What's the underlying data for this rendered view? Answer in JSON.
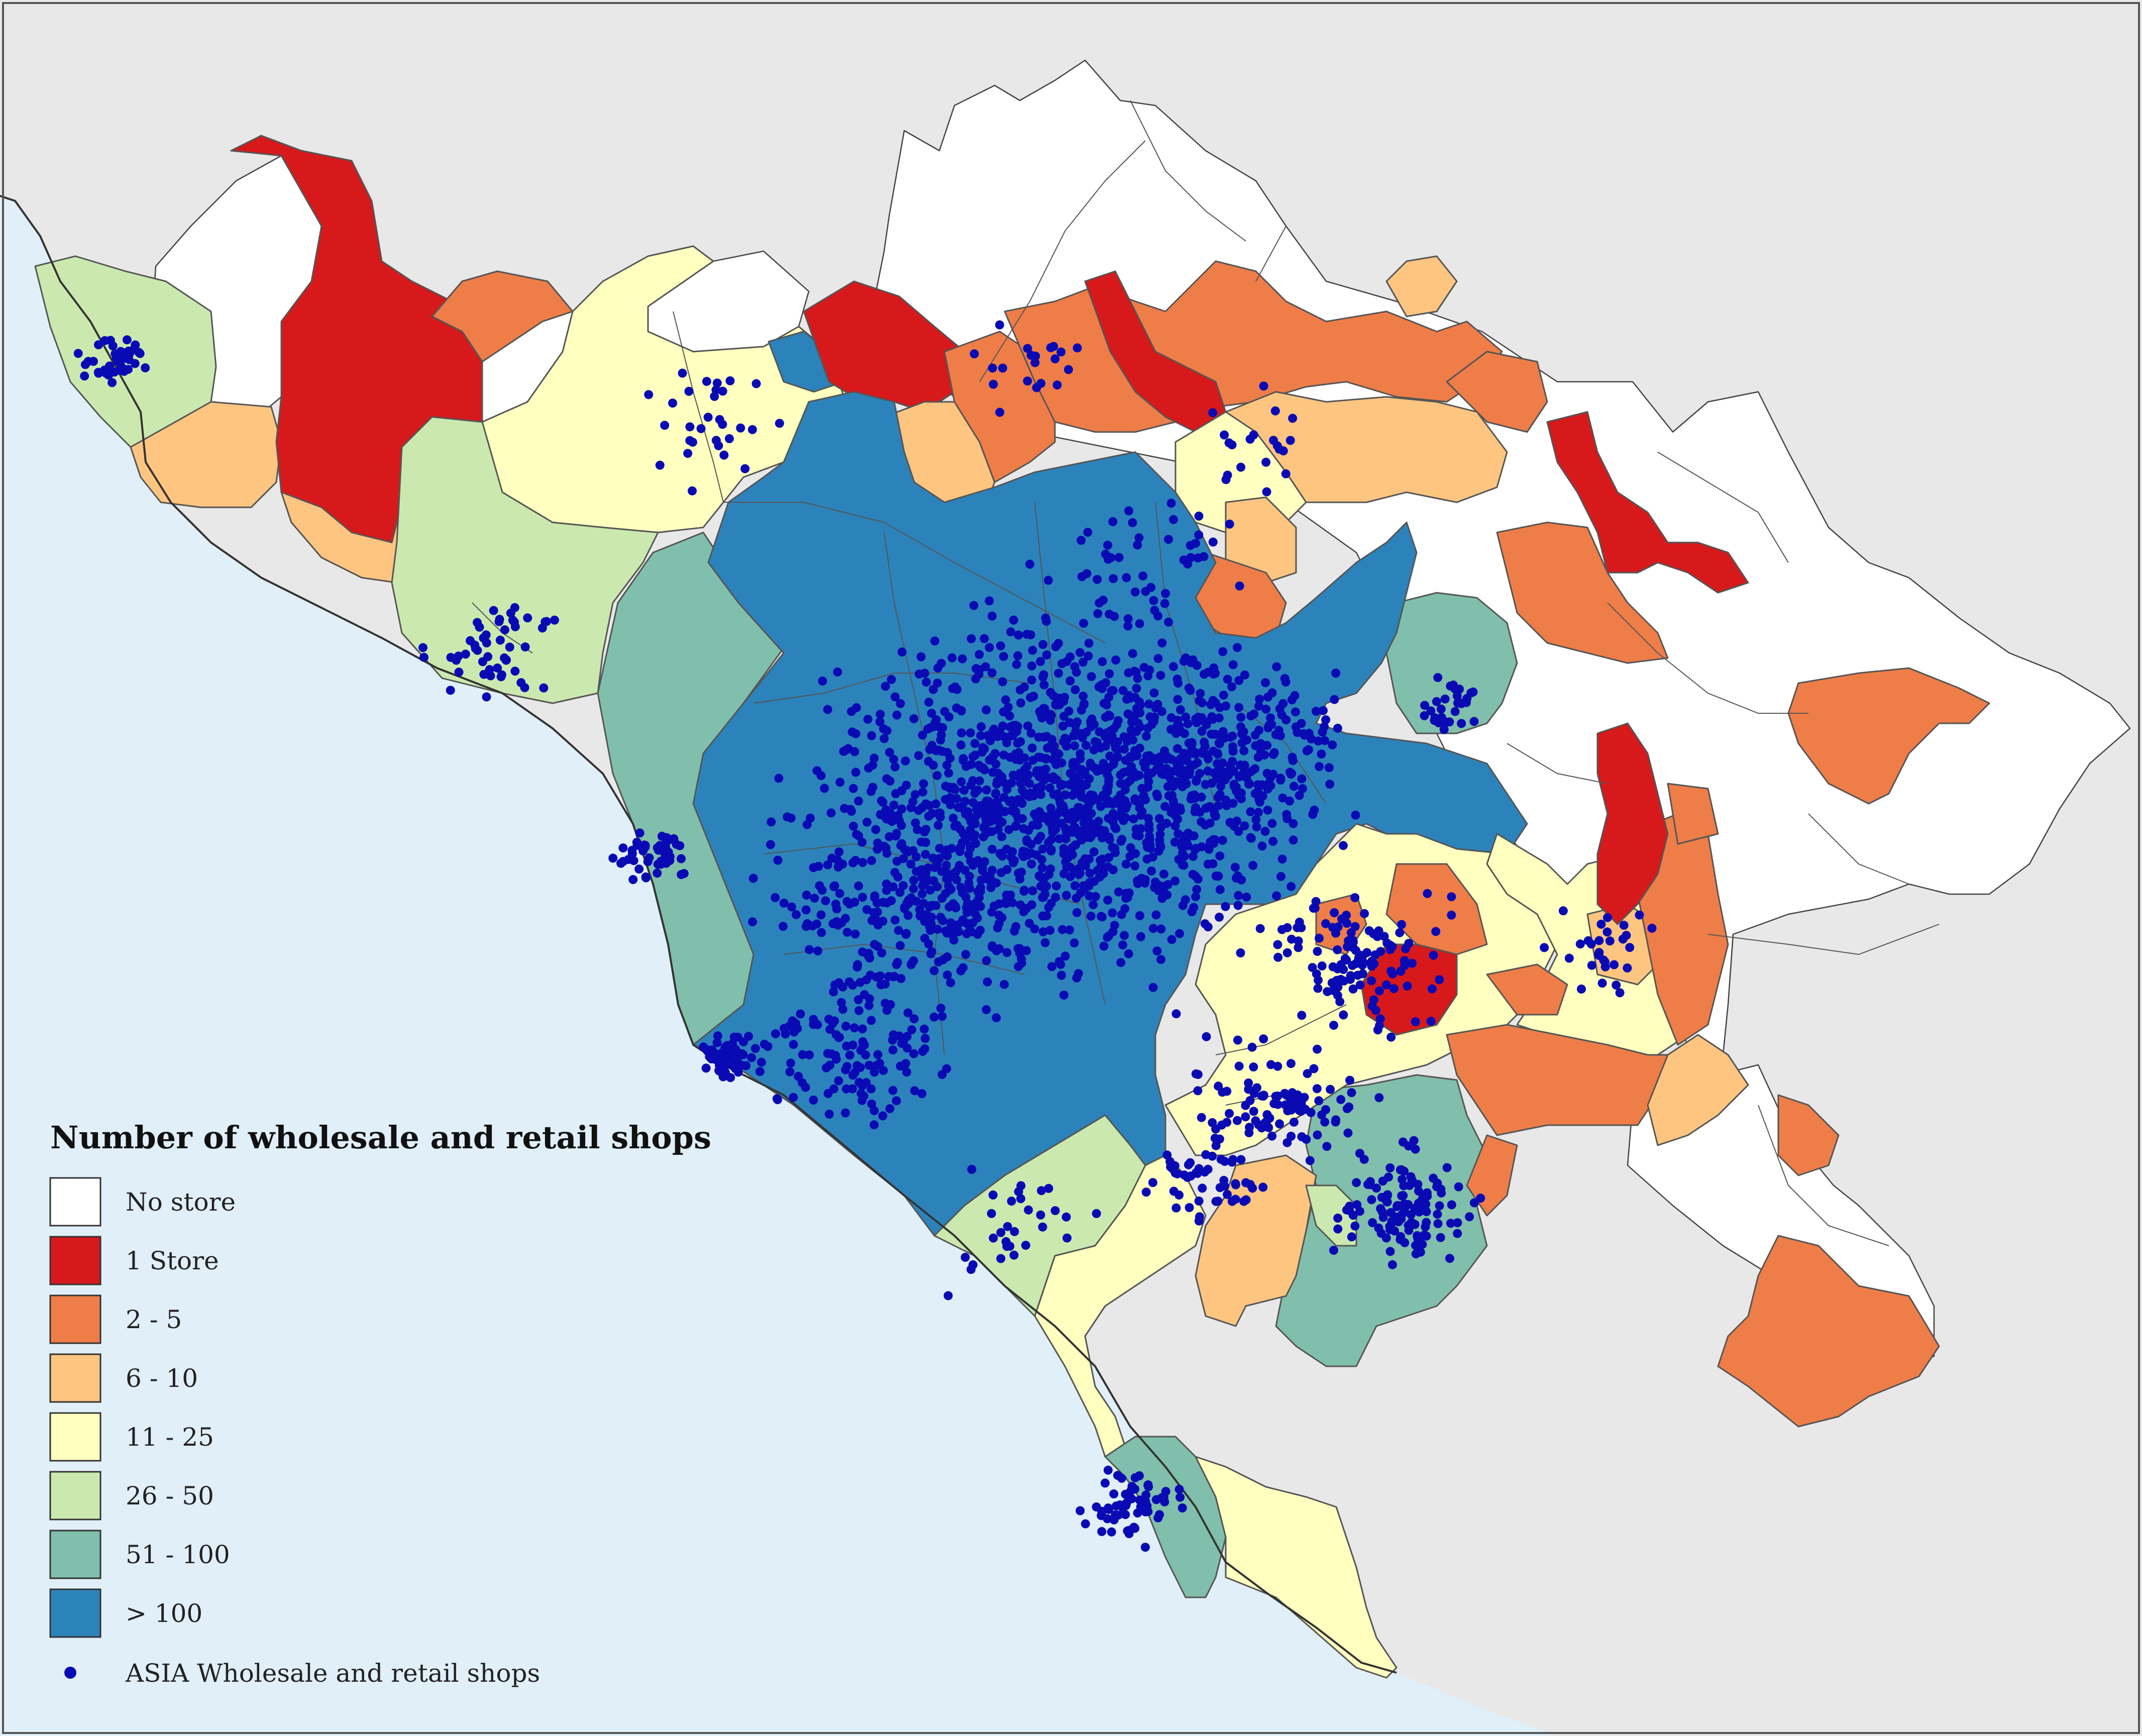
{
  "map": {
    "colors": {
      "sea": "#e0eff8",
      "land_outside": "#e8e8e8",
      "no_store": "#ffffff",
      "one_store": "#d7191c",
      "two_five": "#ef7d48",
      "six_ten": "#fdc580",
      "eleven_25": "#ffffbf",
      "twentysix_50": "#cbe9af",
      "fiftyone_100": "#80bfab",
      "over_100": "#2c83bb",
      "shop_point": "#0a0ab4"
    }
  },
  "legend": {
    "title": "Number of wholesale and retail shops",
    "items": [
      {
        "label": "No store",
        "color": "#ffffff"
      },
      {
        "label": "1 Store",
        "color": "#d7191c"
      },
      {
        "label": "2 - 5",
        "color": "#ef7d48"
      },
      {
        "label": "6 - 10",
        "color": "#fdc580"
      },
      {
        "label": "11 - 25",
        "color": "#ffffbf"
      },
      {
        "label": "26 - 50",
        "color": "#cbe9af"
      },
      {
        "label": "51 - 100",
        "color": "#80bfab"
      },
      {
        "label": "> 100",
        "color": "#2c83bb"
      }
    ],
    "point_label": "ASIA Wholesale and retail shops",
    "point_color": "#0a0ab4"
  }
}
